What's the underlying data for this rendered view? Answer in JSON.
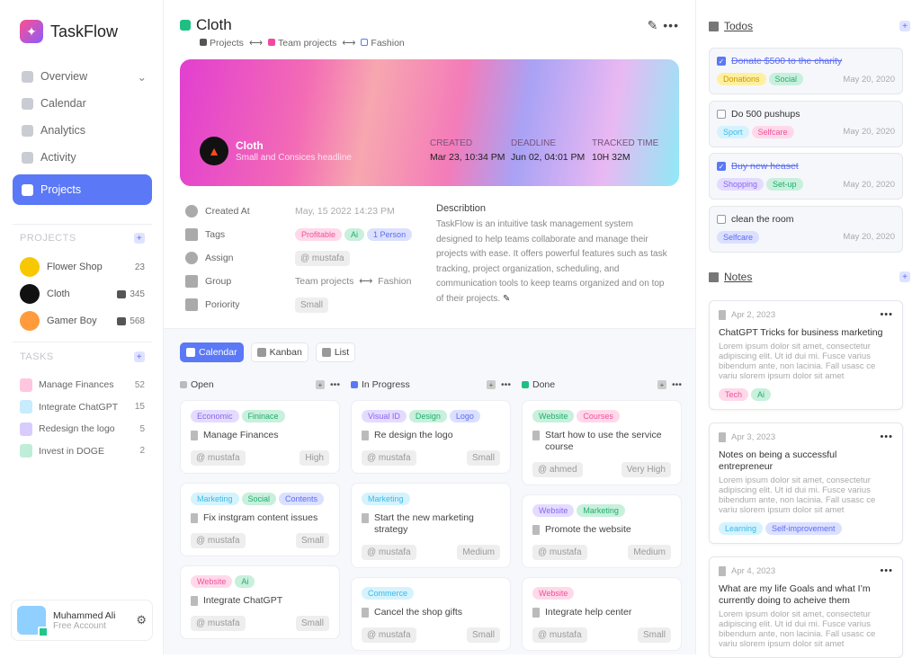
{
  "app": {
    "name": "TaskFlow"
  },
  "nav": [
    {
      "label": "Overview",
      "icon": "grid-icon"
    },
    {
      "label": "Calendar",
      "icon": "calendar-icon"
    },
    {
      "label": "Analytics",
      "icon": "pie-chart-icon"
    },
    {
      "label": "Activity",
      "icon": "activity-icon"
    },
    {
      "label": "Projects",
      "icon": "folder-icon"
    }
  ],
  "projects_section": {
    "title": "PROJECTS",
    "items": [
      {
        "name": "Flower Shop",
        "count": "23",
        "color": "#f7c800"
      },
      {
        "name": "Cloth",
        "count": "345",
        "color": "#111111"
      },
      {
        "name": "Gamer Boy",
        "count": "568",
        "color": "#ff9b3d"
      }
    ]
  },
  "tasks_section": {
    "title": "TASKS",
    "items": [
      {
        "name": "Manage Finances",
        "count": "52",
        "color": "#ffc6e0"
      },
      {
        "name": "Integrate ChatGPT",
        "count": "15",
        "color": "#c6ecfd"
      },
      {
        "name": "Redesign the logo",
        "count": "5",
        "color": "#d8ccff"
      },
      {
        "name": "Invest in DOGE",
        "count": "2",
        "color": "#bfeed8"
      }
    ]
  },
  "user": {
    "name": "Muhammed Ali",
    "plan": "Free Account"
  },
  "project": {
    "title": "Cloth",
    "breadcrumb": [
      "Projects",
      "Team projects",
      "Fashion"
    ],
    "subtitle": "Small and Consices headline",
    "meta": [
      {
        "k": "CREATED",
        "v": "Mar 23, 10:34 PM"
      },
      {
        "k": "DEADLINE",
        "v": "Jun 02, 04:01 PM"
      },
      {
        "k": "TRACKED TIME",
        "v": "10H 32M"
      }
    ],
    "props": {
      "created_label": "Created At",
      "created": "May, 15 2022 14:23 PM",
      "tags_label": "Tags",
      "tags": [
        {
          "t": "Profitable",
          "c": "pink"
        },
        {
          "t": "Ai",
          "c": "green"
        },
        {
          "t": "1 Person",
          "c": "blue"
        }
      ],
      "assign_label": "Assign",
      "assign": "@ mustafa",
      "group_label": "Group",
      "group_from": "Team projects",
      "group_to": "Fashion",
      "priority_label": "Poriority",
      "priority": "Small"
    },
    "desc_title": "Describtion",
    "desc": "TaskFlow is an intuitive task management system designed to help teams collaborate and manage their projects with ease. It offers powerful features such as task tracking, project organization, scheduling, and communication tools to keep teams organized and on top of their projects."
  },
  "views": [
    "Calendar",
    "Kanban",
    "List"
  ],
  "columns": [
    {
      "name": "Open",
      "color": "#bbbbbb",
      "cards": [
        {
          "tags": [
            [
              "Economic",
              "purple"
            ],
            [
              "Fininace",
              "green"
            ]
          ],
          "title": "Manage Finances",
          "user": "@ mustafa",
          "prio": "High"
        },
        {
          "tags": [
            [
              "Marketing",
              "cyan"
            ],
            [
              "Social",
              "green"
            ],
            [
              "Contents",
              "blue"
            ]
          ],
          "title": "Fix instgram content issues",
          "user": "@ mustafa",
          "prio": "Small"
        },
        {
          "tags": [
            [
              "Website",
              "pink"
            ],
            [
              "Ai",
              "green"
            ]
          ],
          "title": "Integrate ChatGPT",
          "user": "@ mustafa",
          "prio": "Small"
        }
      ]
    },
    {
      "name": "In Progress",
      "color": "#5b78f6",
      "cards": [
        {
          "tags": [
            [
              "Visual ID",
              "purple"
            ],
            [
              "Design",
              "green"
            ],
            [
              "Logo",
              "blue"
            ]
          ],
          "title": "Re design the logo",
          "user": "@ mustafa",
          "prio": "Small"
        },
        {
          "tags": [
            [
              "Marketing",
              "cyan"
            ]
          ],
          "title": "Start the new marketing strategy",
          "user": "@ mustafa",
          "prio": "Medium"
        },
        {
          "tags": [
            [
              "Commerce",
              "cyan"
            ]
          ],
          "title": "Cancel the shop gifts",
          "user": "@ mustafa",
          "prio": "Small"
        }
      ]
    },
    {
      "name": "Done",
      "color": "#1fbf83",
      "cards": [
        {
          "tags": [
            [
              "Website",
              "green"
            ],
            [
              "Courses",
              "pink"
            ]
          ],
          "title": "Start how to use the service course",
          "user": "@ ahmed",
          "prio": "Very High"
        },
        {
          "tags": [
            [
              "Website",
              "purple"
            ],
            [
              "Marketing",
              "green"
            ]
          ],
          "title": "Promote the website",
          "user": "@ mustafa",
          "prio": "Medium"
        },
        {
          "tags": [
            [
              "Website",
              "pink"
            ]
          ],
          "title": "Integrate help center",
          "user": "@ mustafa",
          "prio": "Small"
        }
      ]
    }
  ],
  "todos": {
    "title": "Todos",
    "items": [
      {
        "text": "Donate $500 to the charity",
        "done": true,
        "tags": [
          [
            "Donations",
            "yellow"
          ],
          [
            "Social",
            "green"
          ]
        ],
        "date": "May 20, 2020"
      },
      {
        "text": "Do 500 pushups",
        "done": false,
        "tags": [
          [
            "Sport",
            "cyan"
          ],
          [
            "Selfcare",
            "pink"
          ]
        ],
        "date": "May 20, 2020"
      },
      {
        "text": "Buy new heaset",
        "done": true,
        "tags": [
          [
            "Shopping",
            "purple"
          ],
          [
            "Set-up",
            "green"
          ]
        ],
        "date": "May 20, 2020"
      },
      {
        "text": "clean the room",
        "done": false,
        "tags": [
          [
            "Selfcare",
            "blue"
          ]
        ],
        "date": "May 20, 2020"
      }
    ]
  },
  "notes": {
    "title": "Notes",
    "lorem": "Lorem ipsum dolor sit amet, consectetur adipiscing elit. Ut id dui mi. Fusce varius bibendum ante, non lacinia. Fall usasc ce variu slorem ipsum dolor sit amet",
    "items": [
      {
        "date": "Apr 2, 2023",
        "title": "ChatGPT Tricks for business marketing",
        "tags": [
          [
            "Tech",
            "pink"
          ],
          [
            "Ai",
            "green"
          ]
        ]
      },
      {
        "date": "Apr 3, 2023",
        "title": "Notes on being a successful entrepreneur",
        "tags": [
          [
            "Learning",
            "cyan"
          ],
          [
            "Self-improvement",
            "blue"
          ]
        ]
      },
      {
        "date": "Apr 4, 2023",
        "title": "What are my life Goals and what I’m currently doing to acheive them",
        "tags": []
      }
    ]
  },
  "tag_colors": {
    "pink": [
      "#ffd9ea",
      "#f0509a"
    ],
    "green": [
      "#c8f0dc",
      "#1fae6e"
    ],
    "blue": [
      "#dbe0ff",
      "#5b6cf5"
    ],
    "purple": [
      "#e4dcff",
      "#8a63f0"
    ],
    "cyan": [
      "#d4f3fd",
      "#3ab8ea"
    ],
    "yellow": [
      "#fff0a0",
      "#c99a00"
    ]
  },
  "accent": "#5b78f6"
}
